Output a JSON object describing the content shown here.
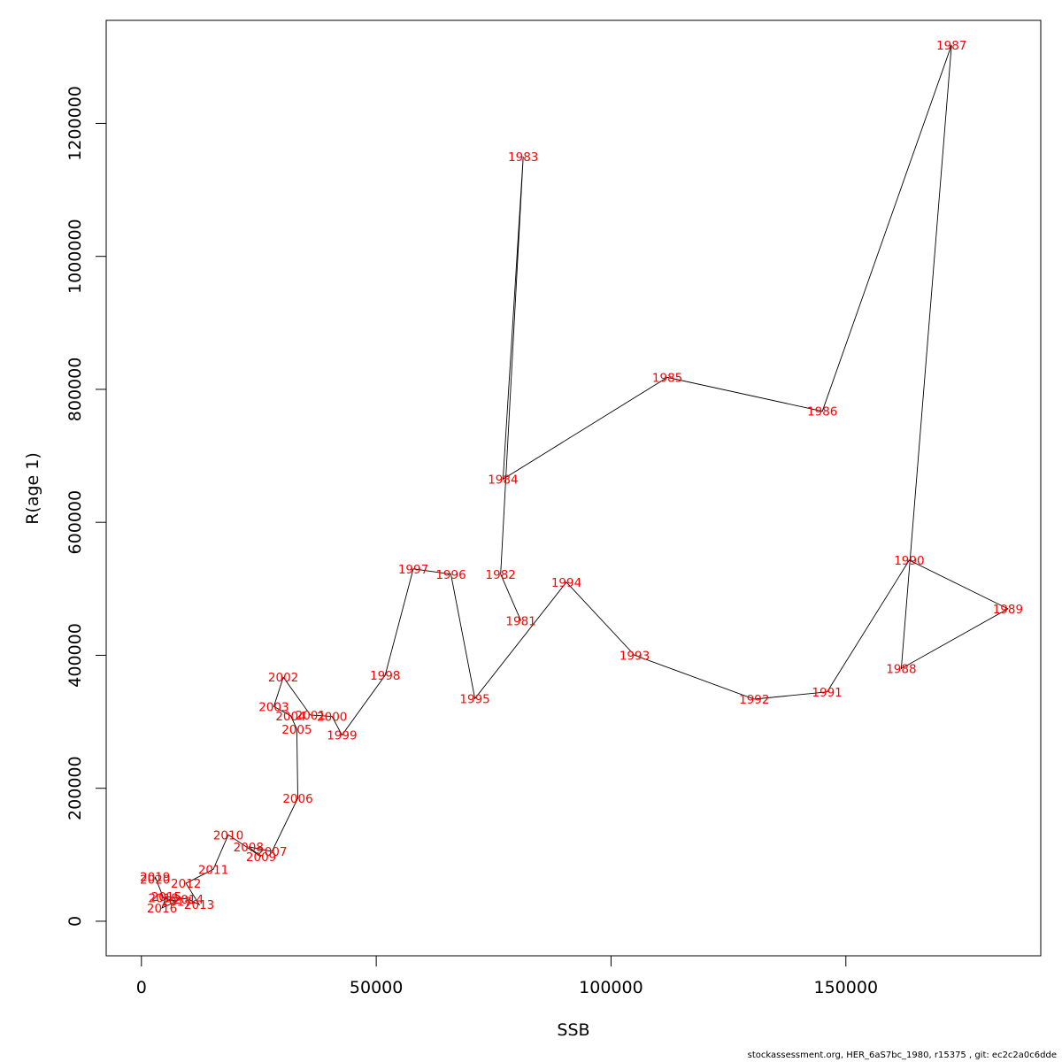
{
  "chart_data": {
    "type": "line",
    "xlabel": "SSB",
    "ylabel": "R(age 1)",
    "xlim": [
      -7500,
      191500
    ],
    "ylim": [
      -52000,
      1355000
    ],
    "x_ticks": [
      0,
      50000,
      100000,
      150000
    ],
    "x_tick_labels": [
      "0",
      "50000",
      "100000",
      "150000"
    ],
    "y_ticks": [
      0,
      200000,
      400000,
      600000,
      800000,
      1000000,
      1200000
    ],
    "y_tick_labels": [
      "0",
      "200000",
      "400000",
      "600000",
      "800000",
      "1000000",
      "1200000"
    ],
    "line_color": "#000000",
    "label_color": "#ff0000",
    "points": [
      {
        "label": "1981",
        "x": 80800,
        "y": 452000
      },
      {
        "label": "1982",
        "x": 76500,
        "y": 522000
      },
      {
        "label": "1983",
        "x": 81300,
        "y": 1150000
      },
      {
        "label": "1984",
        "x": 77000,
        "y": 665000
      },
      {
        "label": "1985",
        "x": 112000,
        "y": 818000
      },
      {
        "label": "1986",
        "x": 145000,
        "y": 767000
      },
      {
        "label": "1987",
        "x": 172500,
        "y": 1318000
      },
      {
        "label": "1988",
        "x": 161800,
        "y": 380000
      },
      {
        "label": "1989",
        "x": 184500,
        "y": 470000
      },
      {
        "label": "1990",
        "x": 163500,
        "y": 543000
      },
      {
        "label": "1991",
        "x": 146000,
        "y": 345000
      },
      {
        "label": "1992",
        "x": 130500,
        "y": 334000
      },
      {
        "label": "1993",
        "x": 105000,
        "y": 400000
      },
      {
        "label": "1994",
        "x": 90500,
        "y": 510000
      },
      {
        "label": "1995",
        "x": 71000,
        "y": 335000
      },
      {
        "label": "1996",
        "x": 65900,
        "y": 522000
      },
      {
        "label": "1997",
        "x": 57900,
        "y": 530000
      },
      {
        "label": "1998",
        "x": 51900,
        "y": 370000
      },
      {
        "label": "1999",
        "x": 42700,
        "y": 280000
      },
      {
        "label": "2000",
        "x": 40600,
        "y": 308000
      },
      {
        "label": "2001",
        "x": 36000,
        "y": 310000
      },
      {
        "label": "2002",
        "x": 30200,
        "y": 367000
      },
      {
        "label": "2003",
        "x": 28200,
        "y": 323000
      },
      {
        "label": "2004",
        "x": 31800,
        "y": 309000
      },
      {
        "label": "2005",
        "x": 33100,
        "y": 289000
      },
      {
        "label": "2006",
        "x": 33300,
        "y": 185000
      },
      {
        "label": "2007",
        "x": 27800,
        "y": 105000
      },
      {
        "label": "2008",
        "x": 22800,
        "y": 112000
      },
      {
        "label": "2009",
        "x": 25500,
        "y": 97000
      },
      {
        "label": "2010",
        "x": 18500,
        "y": 130000
      },
      {
        "label": "2011",
        "x": 15300,
        "y": 78000
      },
      {
        "label": "2012",
        "x": 9500,
        "y": 57000
      },
      {
        "label": "2013",
        "x": 12300,
        "y": 25000
      },
      {
        "label": "2014",
        "x": 10000,
        "y": 33000
      },
      {
        "label": "2015",
        "x": 5300,
        "y": 37000
      },
      {
        "label": "2016",
        "x": 4400,
        "y": 20000
      },
      {
        "label": "2017",
        "x": 7500,
        "y": 30000
      },
      {
        "label": "2018",
        "x": 4700,
        "y": 35000
      },
      {
        "label": "2019",
        "x": 2900,
        "y": 67000
      },
      {
        "label": "2020",
        "x": 2900,
        "y": 63000
      }
    ]
  },
  "footer": "stockassessment.org, HER_6aS7bc_1980, r15375 , git: ec2c2a0c6dde"
}
